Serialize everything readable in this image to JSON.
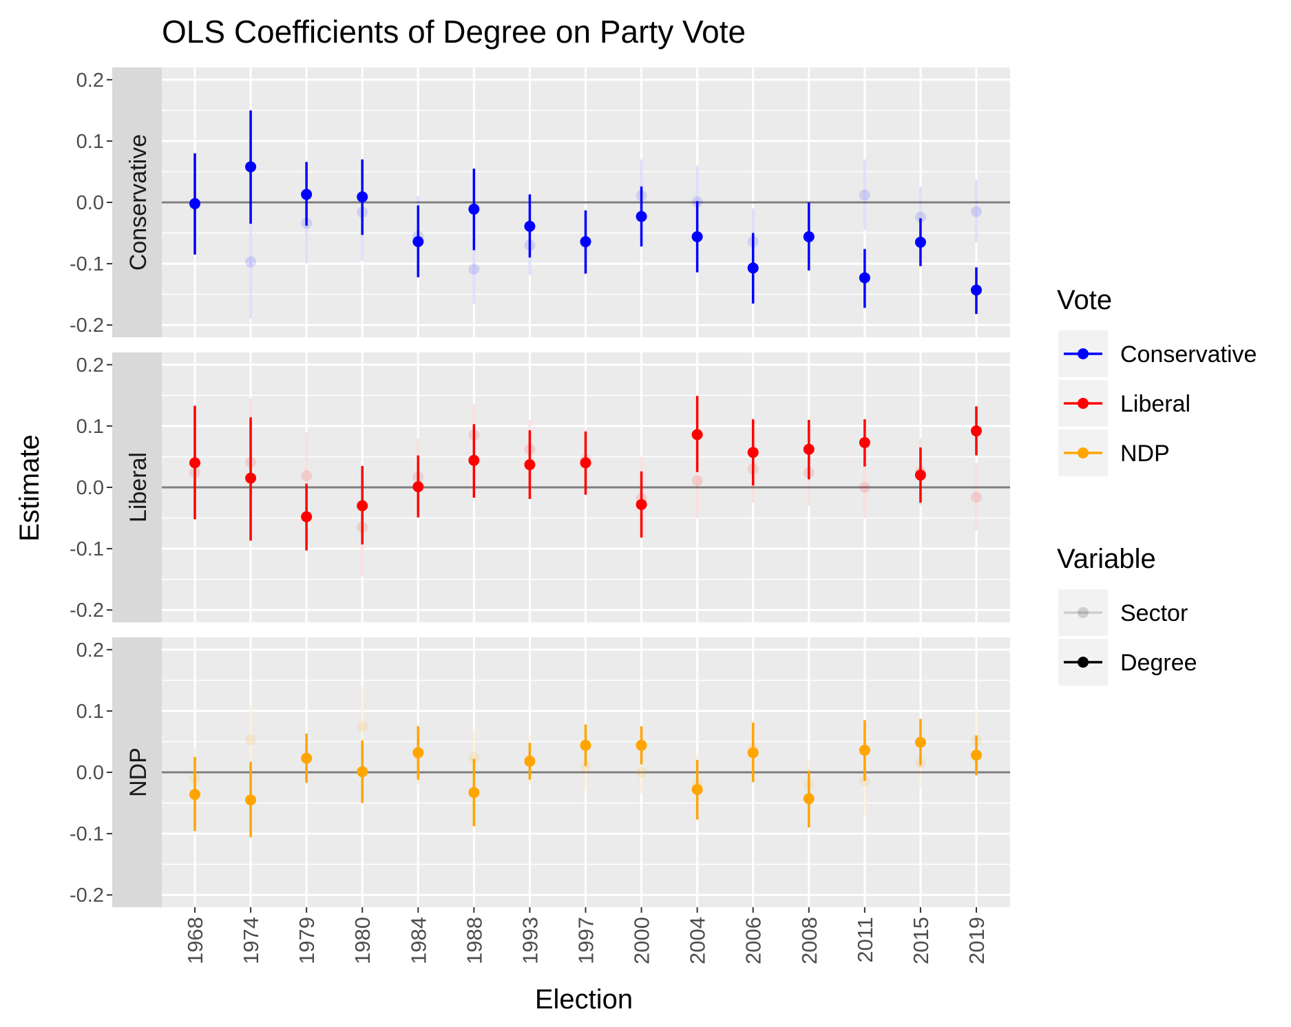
{
  "chart_data": {
    "type": "scatter",
    "subtype": "faceted point-range (coefficient plot)",
    "title": "OLS Coefficients of Degree on Party Vote",
    "xlabel": "Election",
    "ylabel": "Estimate",
    "categories": [
      "1968",
      "1974",
      "1979",
      "1980",
      "1984",
      "1988",
      "1993",
      "1997",
      "2000",
      "2004",
      "2006",
      "2008",
      "2011",
      "2015",
      "2019"
    ],
    "ylim": [
      -0.22,
      0.22
    ],
    "yticks": [
      -0.2,
      -0.1,
      0.0,
      0.1,
      0.2
    ],
    "ytick_labels": [
      "-0.2",
      "-0.1",
      "0.0",
      "0.1",
      "0.2"
    ],
    "reference_line": 0,
    "grid": true,
    "legend_position": "right",
    "legends": [
      {
        "title": "Vote",
        "entries": [
          {
            "label": "Conservative",
            "color": "#0000FF"
          },
          {
            "label": "Liberal",
            "color": "#FF0000"
          },
          {
            "label": "NDP",
            "color": "#FFA500"
          }
        ]
      },
      {
        "title": "Variable",
        "entries": [
          {
            "label": "Sector",
            "alpha": 0.15
          },
          {
            "label": "Degree",
            "alpha": 1.0
          }
        ]
      }
    ],
    "facets": [
      {
        "label": "Conservative",
        "color": "#0000FF",
        "degree": {
          "estimate": [
            -0.002,
            0.058,
            0.013,
            0.009,
            -0.064,
            -0.011,
            -0.039,
            -0.064,
            -0.023,
            -0.056,
            -0.107,
            -0.056,
            -0.123,
            -0.065,
            -0.143
          ],
          "lower": [
            -0.085,
            -0.035,
            -0.038,
            -0.053,
            -0.122,
            -0.078,
            -0.09,
            -0.116,
            -0.072,
            -0.114,
            -0.165,
            -0.111,
            -0.172,
            -0.104,
            -0.182
          ],
          "upper": [
            0.08,
            0.15,
            0.066,
            0.07,
            -0.005,
            0.055,
            0.013,
            -0.013,
            0.026,
            0.002,
            -0.05,
            0.0,
            -0.076,
            -0.026,
            -0.106
          ]
        },
        "sector": {
          "estimate": [
            -0.003,
            -0.097,
            -0.034,
            -0.016,
            -0.055,
            -0.109,
            -0.07,
            -0.066,
            0.011,
            0.001,
            -0.064,
            -0.057,
            0.012,
            -0.024,
            -0.015
          ],
          "lower": [
            -0.085,
            -0.19,
            -0.1,
            -0.095,
            -0.12,
            -0.165,
            -0.118,
            -0.118,
            -0.045,
            -0.06,
            -0.12,
            -0.11,
            -0.045,
            -0.072,
            -0.065
          ],
          "upper": [
            0.08,
            -0.005,
            0.03,
            0.06,
            0.01,
            -0.055,
            -0.02,
            -0.015,
            0.07,
            0.06,
            -0.01,
            -0.005,
            0.07,
            0.025,
            0.037
          ]
        }
      },
      {
        "label": "Liberal",
        "color": "#FF0000",
        "degree": {
          "estimate": [
            0.04,
            0.015,
            -0.048,
            -0.03,
            0.001,
            0.044,
            0.037,
            0.04,
            -0.028,
            0.086,
            0.057,
            0.062,
            0.073,
            0.02,
            0.092
          ],
          "lower": [
            -0.052,
            -0.087,
            -0.103,
            -0.093,
            -0.049,
            -0.017,
            -0.019,
            -0.012,
            -0.082,
            0.025,
            0.003,
            0.013,
            0.034,
            -0.025,
            0.052
          ],
          "upper": [
            0.133,
            0.114,
            0.006,
            0.035,
            0.052,
            0.103,
            0.093,
            0.091,
            0.026,
            0.149,
            0.111,
            0.11,
            0.111,
            0.065,
            0.132
          ]
        },
        "sector": {
          "estimate": [
            0.024,
            0.041,
            0.019,
            -0.065,
            0.017,
            0.085,
            0.062,
            0.045,
            -0.018,
            0.011,
            0.03,
            0.024,
            0.0,
            0.025,
            -0.016
          ],
          "lower": [
            -0.05,
            -0.06,
            -0.05,
            -0.145,
            -0.04,
            0.035,
            0.01,
            -0.01,
            -0.08,
            -0.05,
            -0.025,
            -0.03,
            -0.05,
            -0.03,
            -0.07
          ],
          "upper": [
            0.1,
            0.145,
            0.09,
            0.015,
            0.08,
            0.135,
            0.11,
            0.095,
            0.05,
            0.07,
            0.085,
            0.08,
            0.05,
            0.08,
            0.04
          ]
        }
      },
      {
        "label": "NDP",
        "color": "#FFA500",
        "degree": {
          "estimate": [
            -0.036,
            -0.045,
            0.023,
            0.001,
            0.032,
            -0.033,
            0.018,
            0.044,
            0.044,
            -0.028,
            0.032,
            -0.043,
            0.036,
            0.049,
            0.028
          ],
          "lower": [
            -0.096,
            -0.106,
            -0.017,
            -0.05,
            -0.012,
            -0.088,
            -0.012,
            0.01,
            0.013,
            -0.077,
            -0.016,
            -0.09,
            -0.014,
            0.011,
            -0.005
          ],
          "upper": [
            0.025,
            0.017,
            0.063,
            0.052,
            0.075,
            0.022,
            0.048,
            0.078,
            0.075,
            0.02,
            0.081,
            0.003,
            0.085,
            0.087,
            0.06
          ]
        },
        "sector": {
          "estimate": [
            -0.01,
            0.053,
            0.022,
            0.075,
            0.03,
            0.024,
            0.02,
            0.01,
            0.0,
            -0.02,
            0.038,
            -0.02,
            -0.014,
            0.015,
            0.052
          ],
          "lower": [
            -0.06,
            -0.005,
            -0.02,
            0.01,
            -0.02,
            -0.02,
            -0.02,
            -0.03,
            -0.035,
            -0.07,
            -0.01,
            -0.06,
            -0.07,
            -0.025,
            0.0
          ],
          "upper": [
            0.04,
            0.11,
            0.065,
            0.14,
            0.08,
            0.07,
            0.06,
            0.05,
            0.035,
            0.03,
            0.085,
            0.02,
            0.04,
            0.055,
            0.1
          ]
        }
      }
    ]
  }
}
